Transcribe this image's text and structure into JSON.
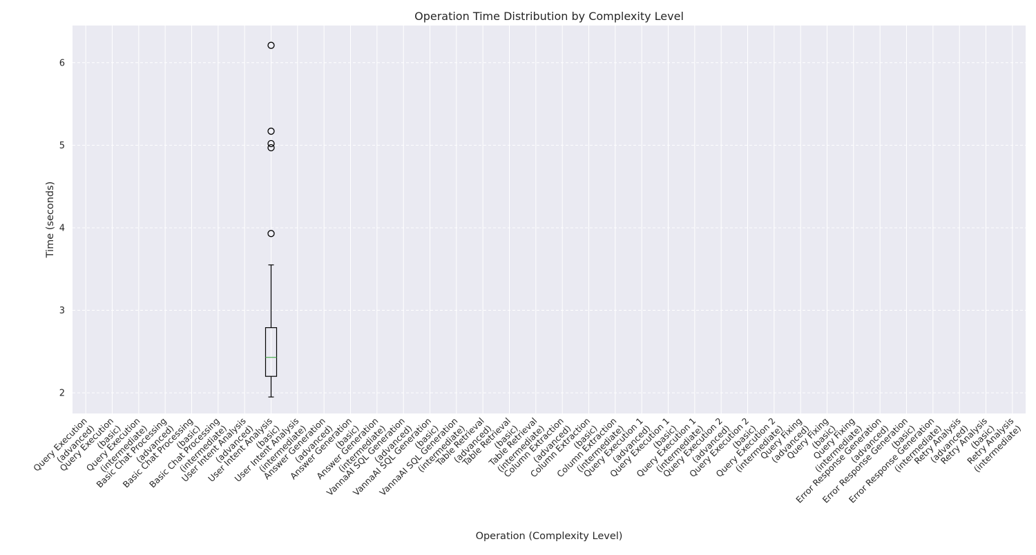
{
  "chart_data": {
    "type": "box",
    "title": "Operation Time Distribution by Complexity Level",
    "xlabel": "Operation (Complexity Level)",
    "ylabel": "Time (seconds)",
    "ylim": [
      1.75,
      6.45
    ],
    "yticks": [
      2,
      3,
      4,
      5,
      6
    ],
    "grid": true,
    "categories": [
      [
        "Query Execution",
        "(advanced)"
      ],
      [
        "Query Execution",
        "(basic)"
      ],
      [
        "Query Execution",
        "(intermediate)"
      ],
      [
        "Basic Chat Processing",
        "(advanced)"
      ],
      [
        "Basic Chat Processing",
        "(basic)"
      ],
      [
        "Basic Chat Processing",
        "(intermediate)"
      ],
      [
        "User Intent Analysis",
        "(advanced)"
      ],
      [
        "User Intent Analysis",
        "(basic)"
      ],
      [
        "User Intent Analysis",
        "(intermediate)"
      ],
      [
        "Answer Generation",
        "(advanced)"
      ],
      [
        "Answer Generation",
        "(basic)"
      ],
      [
        "Answer Generation",
        "(intermediate)"
      ],
      [
        "VannaAI SQL Generation",
        "(advanced)"
      ],
      [
        "VannaAI SQL Generation",
        "(basic)"
      ],
      [
        "VannaAI SQL Generation",
        "(intermediate)"
      ],
      [
        "Table Retrieval",
        "(advanced)"
      ],
      [
        "Table Retrieval",
        "(basic)"
      ],
      [
        "Table Retrieval",
        "(intermediate)"
      ],
      [
        "Column Extraction",
        "(advanced)"
      ],
      [
        "Column Extraction",
        "(basic)"
      ],
      [
        "Column Extraction",
        "(intermediate)"
      ],
      [
        "Query Execution 1",
        "(advanced)"
      ],
      [
        "Query Execution 1",
        "(basic)"
      ],
      [
        "Query Execution 1",
        "(intermediate)"
      ],
      [
        "Query Execution 2",
        "(advanced)"
      ],
      [
        "Query Execution 2",
        "(basic)"
      ],
      [
        "Query Execution 2",
        "(intermediate)"
      ],
      [
        "Query Fixing",
        "(advanced)"
      ],
      [
        "Query Fixing",
        "(basic)"
      ],
      [
        "Query Fixing",
        "(intermediate)"
      ],
      [
        "Error Response Generation",
        "(advanced)"
      ],
      [
        "Error Response Generation",
        "(basic)"
      ],
      [
        "Error Response Generation",
        "(intermediate)"
      ],
      [
        "Retry Analysis",
        "(advanced)"
      ],
      [
        "Retry Analysis",
        "(basic)"
      ],
      [
        "Retry Analysis",
        "(intermediate)"
      ]
    ],
    "boxes": [
      {
        "category_index": 7,
        "q1": 2.2,
        "median": 2.43,
        "q3": 2.79,
        "whisker_low": 1.95,
        "whisker_high": 3.55,
        "outliers": [
          3.93,
          4.97,
          5.02,
          5.17,
          6.21
        ]
      }
    ],
    "colors": {
      "background": "#eaeaf2",
      "grid": "#ffffff",
      "box": "#000000",
      "median": "#4caf50"
    }
  }
}
